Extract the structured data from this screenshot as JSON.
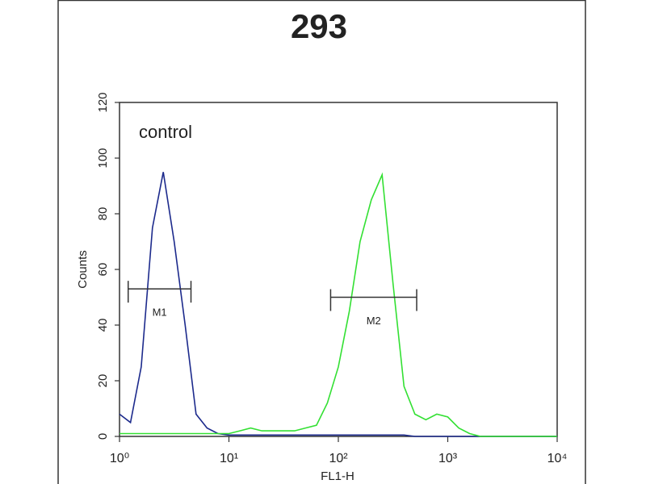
{
  "chart_data": {
    "type": "line",
    "title": "293",
    "x_label": "FL1-H",
    "y_label": "Counts",
    "annotation": "control",
    "log_x": true,
    "xlim": [
      1,
      10000
    ],
    "ylim": [
      0,
      120
    ],
    "xticks": [
      {
        "value": 1,
        "label": "10⁰"
      },
      {
        "value": 10,
        "label": "10¹"
      },
      {
        "value": 100,
        "label": "10²"
      },
      {
        "value": 1000,
        "label": "10³"
      },
      {
        "value": 10000,
        "label": "10⁴"
      }
    ],
    "yticks": [
      0,
      20,
      40,
      60,
      80,
      100,
      120
    ],
    "x": [
      1,
      1.26,
      1.58,
      2,
      2.51,
      3.16,
      3.98,
      5.01,
      6.31,
      7.94,
      10,
      12.6,
      15.8,
      20,
      25.1,
      31.6,
      39.8,
      50.1,
      63.1,
      79.4,
      100,
      126,
      158,
      200,
      251,
      316,
      398,
      501,
      631,
      794,
      1000,
      1259,
      1585,
      1995,
      2512,
      3162,
      3981,
      5012,
      6310,
      7943,
      10000
    ],
    "series": [
      {
        "color": "#1c2a8c",
        "values": [
          8,
          5,
          25,
          75,
          95,
          70,
          40,
          8,
          3,
          1,
          0.5,
          0.5,
          0.5,
          0.5,
          0.5,
          0.5,
          0.5,
          0.5,
          0.5,
          0.5,
          0.5,
          0.5,
          0.5,
          0.5,
          0.5,
          0.5,
          0.5,
          0,
          0,
          0,
          0,
          0,
          0,
          0,
          0,
          0,
          0,
          0,
          0,
          0,
          0
        ]
      },
      {
        "color": "#33e033",
        "values": [
          1,
          1,
          1,
          1,
          1,
          1,
          1,
          1,
          1,
          1,
          1,
          2,
          3,
          2,
          2,
          2,
          2,
          3,
          4,
          12,
          25,
          45,
          70,
          85,
          94,
          55,
          18,
          8,
          6,
          8,
          7,
          3,
          1,
          0,
          0,
          0,
          0,
          0,
          0,
          0,
          0
        ]
      }
    ],
    "gates": [
      {
        "label": "M1",
        "x": [
          1.2,
          4.5
        ],
        "y": 53
      },
      {
        "label": "M2",
        "x": [
          85,
          520
        ],
        "y": 50
      }
    ]
  }
}
